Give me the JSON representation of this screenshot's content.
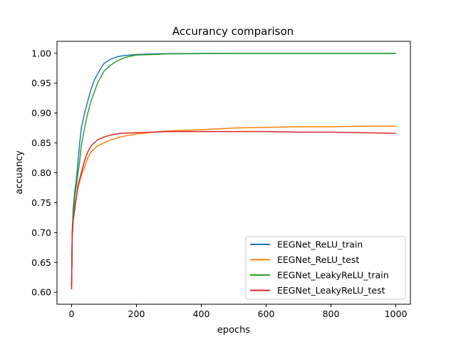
{
  "chart_data": {
    "type": "line",
    "title": "Accurancy comparison",
    "xlabel": "epochs",
    "ylabel": "accuancy",
    "xlim": [
      -45,
      1045
    ],
    "ylim": [
      0.58,
      1.02
    ],
    "xticks": [
      0,
      200,
      400,
      600,
      800,
      1000
    ],
    "yticks": [
      0.6,
      0.65,
      0.7,
      0.75,
      0.8,
      0.85,
      0.9,
      0.95,
      1.0
    ],
    "grid": false,
    "legend_position": "lower-right",
    "series": [
      {
        "name": "EEGNet_ReLU_train",
        "color": "#1f77b4",
        "points": [
          [
            0,
            0.61
          ],
          [
            2,
            0.7
          ],
          [
            5,
            0.74
          ],
          [
            10,
            0.77
          ],
          [
            15,
            0.79
          ],
          [
            20,
            0.82
          ],
          [
            25,
            0.85
          ],
          [
            30,
            0.875
          ],
          [
            40,
            0.9
          ],
          [
            50,
            0.92
          ],
          [
            60,
            0.94
          ],
          [
            70,
            0.955
          ],
          [
            80,
            0.965
          ],
          [
            90,
            0.975
          ],
          [
            100,
            0.983
          ],
          [
            120,
            0.99
          ],
          [
            140,
            0.994
          ],
          [
            160,
            0.996
          ],
          [
            180,
            0.997
          ],
          [
            200,
            0.998
          ],
          [
            250,
            0.999
          ],
          [
            300,
            0.9995
          ],
          [
            400,
            0.9998
          ],
          [
            500,
            0.9999
          ],
          [
            600,
            0.9999
          ],
          [
            700,
            0.9999
          ],
          [
            800,
            0.9999
          ],
          [
            900,
            0.9999
          ],
          [
            1000,
            0.9999
          ]
        ]
      },
      {
        "name": "EEGNet_ReLU_test",
        "color": "#ff7f0e",
        "points": [
          [
            0,
            0.61
          ],
          [
            2,
            0.69
          ],
          [
            5,
            0.72
          ],
          [
            10,
            0.745
          ],
          [
            15,
            0.76
          ],
          [
            20,
            0.775
          ],
          [
            30,
            0.795
          ],
          [
            40,
            0.81
          ],
          [
            50,
            0.825
          ],
          [
            60,
            0.835
          ],
          [
            80,
            0.845
          ],
          [
            100,
            0.85
          ],
          [
            120,
            0.855
          ],
          [
            150,
            0.86
          ],
          [
            200,
            0.865
          ],
          [
            250,
            0.868
          ],
          [
            300,
            0.87
          ],
          [
            400,
            0.872
          ],
          [
            500,
            0.875
          ],
          [
            600,
            0.876
          ],
          [
            700,
            0.877
          ],
          [
            800,
            0.877
          ],
          [
            900,
            0.878
          ],
          [
            1000,
            0.878
          ]
        ]
      },
      {
        "name": "EEGNet_LeakyReLU_train",
        "color": "#2ca02c",
        "points": [
          [
            0,
            0.61
          ],
          [
            2,
            0.7
          ],
          [
            5,
            0.73
          ],
          [
            10,
            0.76
          ],
          [
            15,
            0.78
          ],
          [
            20,
            0.8
          ],
          [
            25,
            0.82
          ],
          [
            30,
            0.845
          ],
          [
            40,
            0.875
          ],
          [
            50,
            0.9
          ],
          [
            60,
            0.92
          ],
          [
            70,
            0.935
          ],
          [
            80,
            0.95
          ],
          [
            90,
            0.96
          ],
          [
            100,
            0.97
          ],
          [
            120,
            0.98
          ],
          [
            140,
            0.987
          ],
          [
            160,
            0.992
          ],
          [
            180,
            0.995
          ],
          [
            200,
            0.997
          ],
          [
            250,
            0.998
          ],
          [
            300,
            0.999
          ],
          [
            400,
            0.9995
          ],
          [
            500,
            0.9997
          ],
          [
            600,
            0.9998
          ],
          [
            700,
            0.9998
          ],
          [
            800,
            0.9998
          ],
          [
            900,
            0.9998
          ],
          [
            1000,
            0.9998
          ]
        ]
      },
      {
        "name": "EEGNet_LeakyReLU_test",
        "color": "#d62728",
        "points": [
          [
            0,
            0.605
          ],
          [
            2,
            0.7
          ],
          [
            5,
            0.72
          ],
          [
            10,
            0.74
          ],
          [
            15,
            0.76
          ],
          [
            20,
            0.78
          ],
          [
            30,
            0.8
          ],
          [
            40,
            0.82
          ],
          [
            50,
            0.835
          ],
          [
            60,
            0.845
          ],
          [
            80,
            0.855
          ],
          [
            100,
            0.86
          ],
          [
            120,
            0.863
          ],
          [
            150,
            0.866
          ],
          [
            200,
            0.867
          ],
          [
            250,
            0.868
          ],
          [
            300,
            0.869
          ],
          [
            400,
            0.869
          ],
          [
            500,
            0.869
          ],
          [
            600,
            0.869
          ],
          [
            700,
            0.868
          ],
          [
            800,
            0.868
          ],
          [
            900,
            0.867
          ],
          [
            1000,
            0.866
          ]
        ]
      }
    ]
  }
}
